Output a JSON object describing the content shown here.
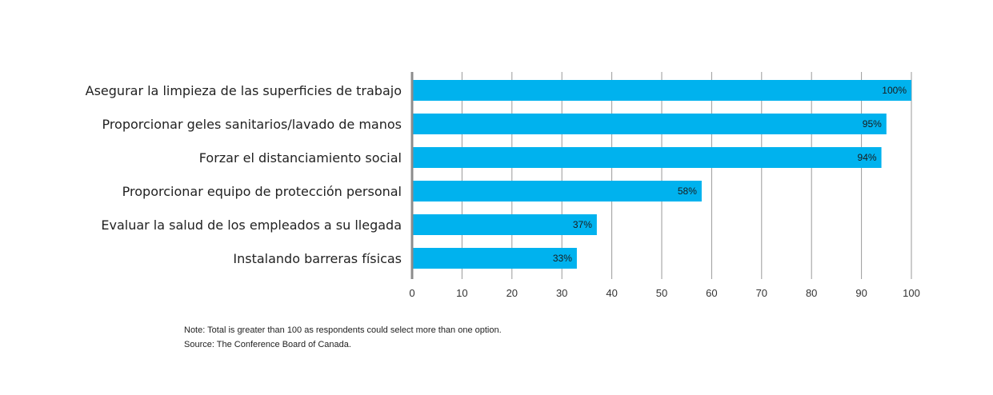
{
  "chart_data": {
    "type": "bar",
    "orientation": "horizontal",
    "categories": [
      "Asegurar la limpieza de las superficies de trabajo",
      "Proporcionar geles sanitarios/lavado de manos",
      "Forzar el distanciamiento social",
      "Proporcionar equipo de protección personal",
      "Evaluar la salud de los empleados a su llegada",
      "Instalando barreras físicas"
    ],
    "values": [
      100,
      95,
      94,
      58,
      37,
      33
    ],
    "value_labels": [
      "100%",
      "95%",
      "94%",
      "58%",
      "37%",
      "33%"
    ],
    "xlim": [
      0,
      100
    ],
    "xticks": [
      0,
      10,
      20,
      30,
      40,
      50,
      60,
      70,
      80,
      90,
      100
    ],
    "grid": "vertical",
    "bar_color": "#00b2ee"
  },
  "notes": {
    "note": "Note: Total is greater than 100 as respondents could select more than one option.",
    "source": "Source: The Conference Board of Canada."
  }
}
